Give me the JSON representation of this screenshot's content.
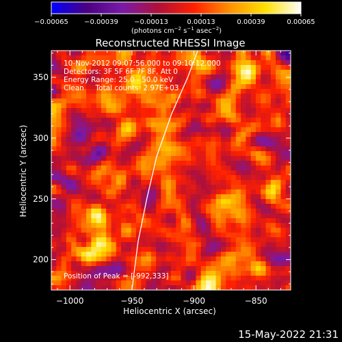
{
  "chart_data": {
    "type": "heatmap",
    "title": "Reconstructed RHESSI Image",
    "xlabel": "Heliocentric X (arcsec)",
    "ylabel": "Heliocentric Y (arcsec)",
    "xlim": [
      -1015,
      -822
    ],
    "ylim": [
      175,
      372
    ],
    "x_ticks": [
      -1000,
      -950,
      -900,
      -850
    ],
    "x_tick_labels": [
      "−1000",
      "−950",
      "−900",
      "−850"
    ],
    "y_ticks": [
      200,
      250,
      300,
      350
    ],
    "y_tick_labels": [
      "200",
      "250",
      "300",
      "350"
    ],
    "colorbar": {
      "range": [
        -0.00065,
        0.00065
      ],
      "ticks": [
        -0.00065,
        -0.00039,
        -0.00013,
        0.00013,
        0.00039,
        0.00065
      ],
      "tick_labels": [
        "−0.00065",
        "−0.00039",
        "−0.00013",
        "0.00013",
        "0.00039",
        "0.00065"
      ],
      "label_main": "(photons cm",
      "label_exp1": "−2",
      "label_mid1": " s",
      "label_exp2": "−1",
      "label_mid2": " asec",
      "label_exp3": "−2",
      "label_end": ")",
      "colors": [
        "#0000ff",
        "#4b0082",
        "#7a1aa8",
        "#b0103a",
        "#ff2000",
        "#ff9000",
        "#ffe000",
        "#ffffff"
      ]
    },
    "info_lines": [
      "10-Nov-2012 09:07:56.000 to 09:10:12.000",
      "Detectors: 3F 5F 6F 7F 8F, Att 0",
      "Energy Range: 25.0 - 50.0 keV",
      "Clean     Total counts: 2.97E+03"
    ],
    "peak_label": "Position of Peak = [-992,333]",
    "limb_line": [
      [
        -950,
        175
      ],
      [
        -945,
        215
      ],
      [
        -938,
        250
      ],
      [
        -930,
        285
      ],
      [
        -918,
        320
      ],
      [
        -905,
        350
      ],
      [
        -897,
        372
      ]
    ],
    "grid_cols": 48,
    "grid_rows": 50,
    "seed": 20121110
  },
  "footer": {
    "timestamp": "15-May-2022 21:31"
  }
}
